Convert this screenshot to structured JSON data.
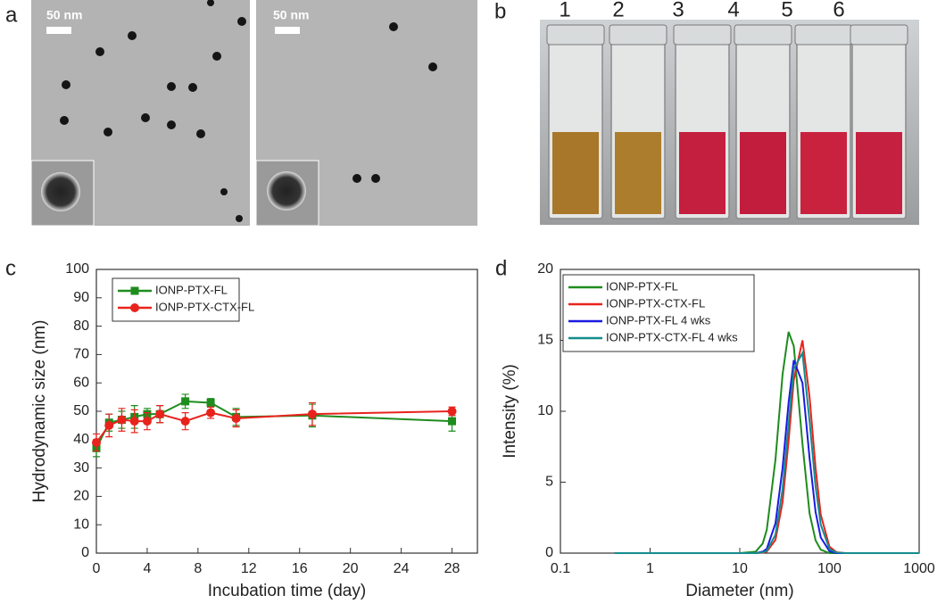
{
  "panels": {
    "a": {
      "label": "a",
      "scale_bar_labels": [
        "50 nm",
        "50 nm"
      ]
    },
    "b": {
      "label": "b",
      "cuvette_labels": [
        "1",
        "2",
        "3",
        "4",
        "5",
        "6"
      ]
    }
  },
  "chart_data": [
    {
      "type": "line",
      "panel_label": "c",
      "x_label": "Incubation time (day)",
      "y_label": "Hydrodynamic size (nm)",
      "x": [
        0,
        1,
        2,
        3,
        4,
        5,
        7,
        9,
        11,
        17,
        28
      ],
      "xlim": [
        0,
        30
      ],
      "xticks": [
        0,
        4,
        8,
        12,
        16,
        20,
        24,
        28
      ],
      "ylim": [
        0,
        100
      ],
      "yticks": [
        0,
        10,
        20,
        30,
        40,
        50,
        60,
        70,
        80,
        90,
        100
      ],
      "legend": "upper left",
      "series": [
        {
          "name": "IONP-PTX-FL",
          "color": "#1e8c1e",
          "marker": "square",
          "values": [
            37,
            46,
            47,
            48,
            49,
            49,
            53.5,
            53,
            48,
            48.5,
            46.5
          ],
          "errors": [
            3,
            3,
            3,
            4,
            2,
            3,
            2.5,
            1.5,
            3,
            4,
            3.5
          ]
        },
        {
          "name": "IONP-PTX-CTX-FL",
          "color": "#e8231c",
          "marker": "circle",
          "values": [
            39,
            45,
            47,
            46.5,
            46.5,
            49,
            46.5,
            49.5,
            47.5,
            49,
            50
          ],
          "errors": [
            3,
            4,
            4,
            4,
            3,
            3,
            3,
            2,
            3,
            4,
            1.5
          ]
        }
      ]
    },
    {
      "type": "line",
      "panel_label": "d",
      "x_label": "Diameter (nm)",
      "y_label": "Intensity (%)",
      "xscale": "log",
      "x": [
        0.4,
        10,
        15,
        18,
        20,
        25,
        30,
        35,
        40,
        50,
        60,
        70,
        80,
        100,
        120,
        150,
        1000
      ],
      "xlim": [
        0.1,
        1000
      ],
      "xticks": [
        0.1,
        1,
        10,
        100,
        1000
      ],
      "ylim": [
        0,
        20
      ],
      "yticks": [
        0,
        5,
        10,
        15,
        20
      ],
      "legend": "upper left",
      "series": [
        {
          "name": "IONP-PTX-FL",
          "color": "#1e8c1e",
          "values": [
            0,
            0,
            0.1,
            0.67,
            1.64,
            6.6,
            12.6,
            15.6,
            14.6,
            7.7,
            2.8,
            0.9,
            0.24,
            0,
            0,
            0,
            0
          ]
        },
        {
          "name": "IONP-PTX-CTX-FL",
          "color": "#e8231c",
          "values": [
            0,
            0,
            0,
            0.03,
            0.1,
            0.94,
            3.6,
            7.9,
            12.2,
            15.0,
            11.0,
            6.0,
            2.7,
            0.45,
            0.06,
            0,
            0
          ]
        },
        {
          "name": "IONP-PTX-FL 4 wks",
          "color": "#1a1ae0",
          "values": [
            0,
            0,
            0,
            0.1,
            0.3,
            2.1,
            6.0,
            10.6,
            13.6,
            12.0,
            6.7,
            2.9,
            1.1,
            0.13,
            0,
            0,
            0
          ]
        },
        {
          "name": "IONP-PTX-CTX-FL 4 wks",
          "color": "#148c8c",
          "values": [
            0,
            0,
            0,
            0.05,
            0.16,
            1.3,
            4.5,
            9.1,
            13.0,
            14.1,
            9.3,
            4.7,
            2.0,
            0.29,
            0.04,
            0,
            0
          ]
        }
      ]
    }
  ]
}
